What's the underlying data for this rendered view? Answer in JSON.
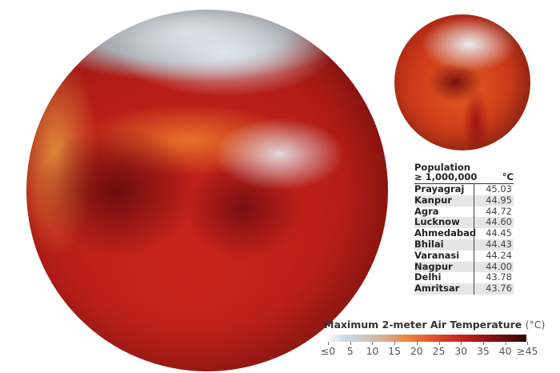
{
  "table": {
    "header_line1": "Population",
    "header_line2": "≥ 1,000,000",
    "unit_header": "°C",
    "rows": [
      {
        "city": "Prayagraj",
        "temp": "45.03"
      },
      {
        "city": "Kanpur",
        "temp": "44.95"
      },
      {
        "city": "Agra",
        "temp": "44.72"
      },
      {
        "city": "Lucknow",
        "temp": "44.60"
      },
      {
        "city": "Ahmedabad",
        "temp": "44.45"
      },
      {
        "city": "Bhilai",
        "temp": "44.43"
      },
      {
        "city": "Varanasi",
        "temp": "44.24"
      },
      {
        "city": "Nagpur",
        "temp": "44.00"
      },
      {
        "city": "Delhi",
        "temp": "43.78"
      },
      {
        "city": "Amritsar",
        "temp": "43.76"
      }
    ]
  },
  "legend": {
    "title": "Maximum 2-meter Air Temperature",
    "unit": "(°C)",
    "ticks": [
      "≤0",
      "5",
      "10",
      "15",
      "20",
      "25",
      "30",
      "35",
      "40",
      "≥45"
    ],
    "colors": [
      "#ffffff",
      "#c7d8e8",
      "#e8893e",
      "#e0472a",
      "#c21d1c",
      "#7e0f12",
      "#2e0508"
    ]
  }
}
